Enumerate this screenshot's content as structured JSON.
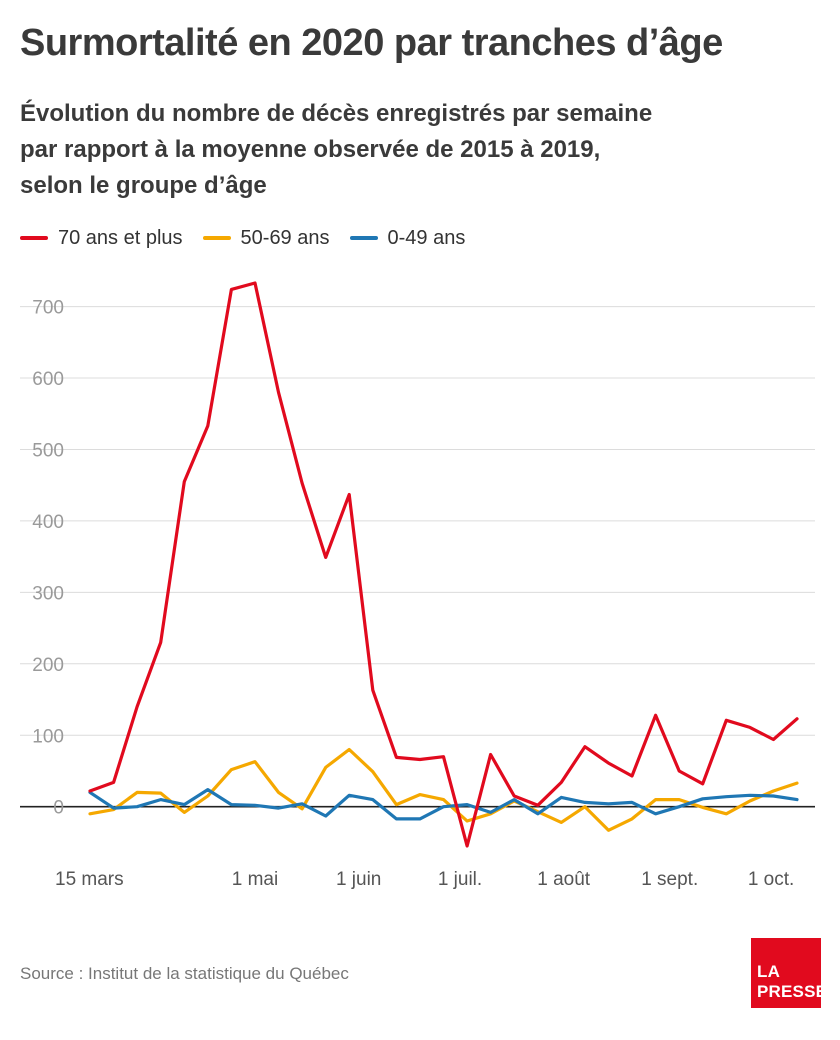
{
  "title": "Surmortalité en 2020 par tranches d’âge",
  "subtitle": [
    "Évolution du nombre de décès enregistrés par semaine",
    "par rapport à la moyenne observée de 2015 à 2019,",
    "selon le groupe d’âge"
  ],
  "source": "Source : Institut de la statistique du Québec",
  "logo": {
    "line1": "LA",
    "line2": "PRESSE",
    "color": "#e10a1e"
  },
  "chart_data": {
    "type": "line",
    "title": "Surmortalité en 2020 par tranches d’âge",
    "xlabel": "",
    "ylabel": "",
    "x_tick_labels": [
      "15 mars",
      "1 mai",
      "1 juin",
      "1 juil.",
      "1 août",
      "1 sept.",
      "1 oct."
    ],
    "x_tick_positions": [
      0,
      7,
      11.4,
      15.7,
      20.1,
      24.6,
      28.9
    ],
    "ylim": [
      -55,
      740
    ],
    "y_ticks": [
      0,
      100,
      200,
      300,
      400,
      500,
      600,
      700
    ],
    "grid": true,
    "legend_position": "top-left",
    "series": [
      {
        "name": "70 ans et plus",
        "color": "#e10a1e",
        "values": [
          22,
          34,
          140,
          230,
          455,
          533,
          724,
          733,
          580,
          453,
          349,
          437,
          163,
          69,
          66,
          70,
          -55,
          73,
          15,
          2,
          34,
          84,
          61,
          43,
          128,
          50,
          32,
          121,
          111,
          94,
          123
        ]
      },
      {
        "name": "50-69 ans",
        "color": "#f5a800",
        "values": [
          -10,
          -4,
          20,
          19,
          -8,
          15,
          52,
          63,
          20,
          -3,
          55,
          80,
          49,
          3,
          17,
          10,
          -20,
          -10,
          8,
          -7,
          -22,
          0,
          -33,
          -17,
          10,
          10,
          -1,
          -10,
          8,
          22,
          33
        ]
      },
      {
        "name": "0-49 ans",
        "color": "#1f77b4",
        "values": [
          20,
          -2,
          0,
          10,
          3,
          24,
          3,
          2,
          -2,
          4,
          -13,
          16,
          10,
          -17,
          -17,
          0,
          3,
          -8,
          10,
          -10,
          13,
          6,
          4,
          6,
          -10,
          0,
          11,
          14,
          16,
          15,
          10
        ]
      }
    ]
  }
}
